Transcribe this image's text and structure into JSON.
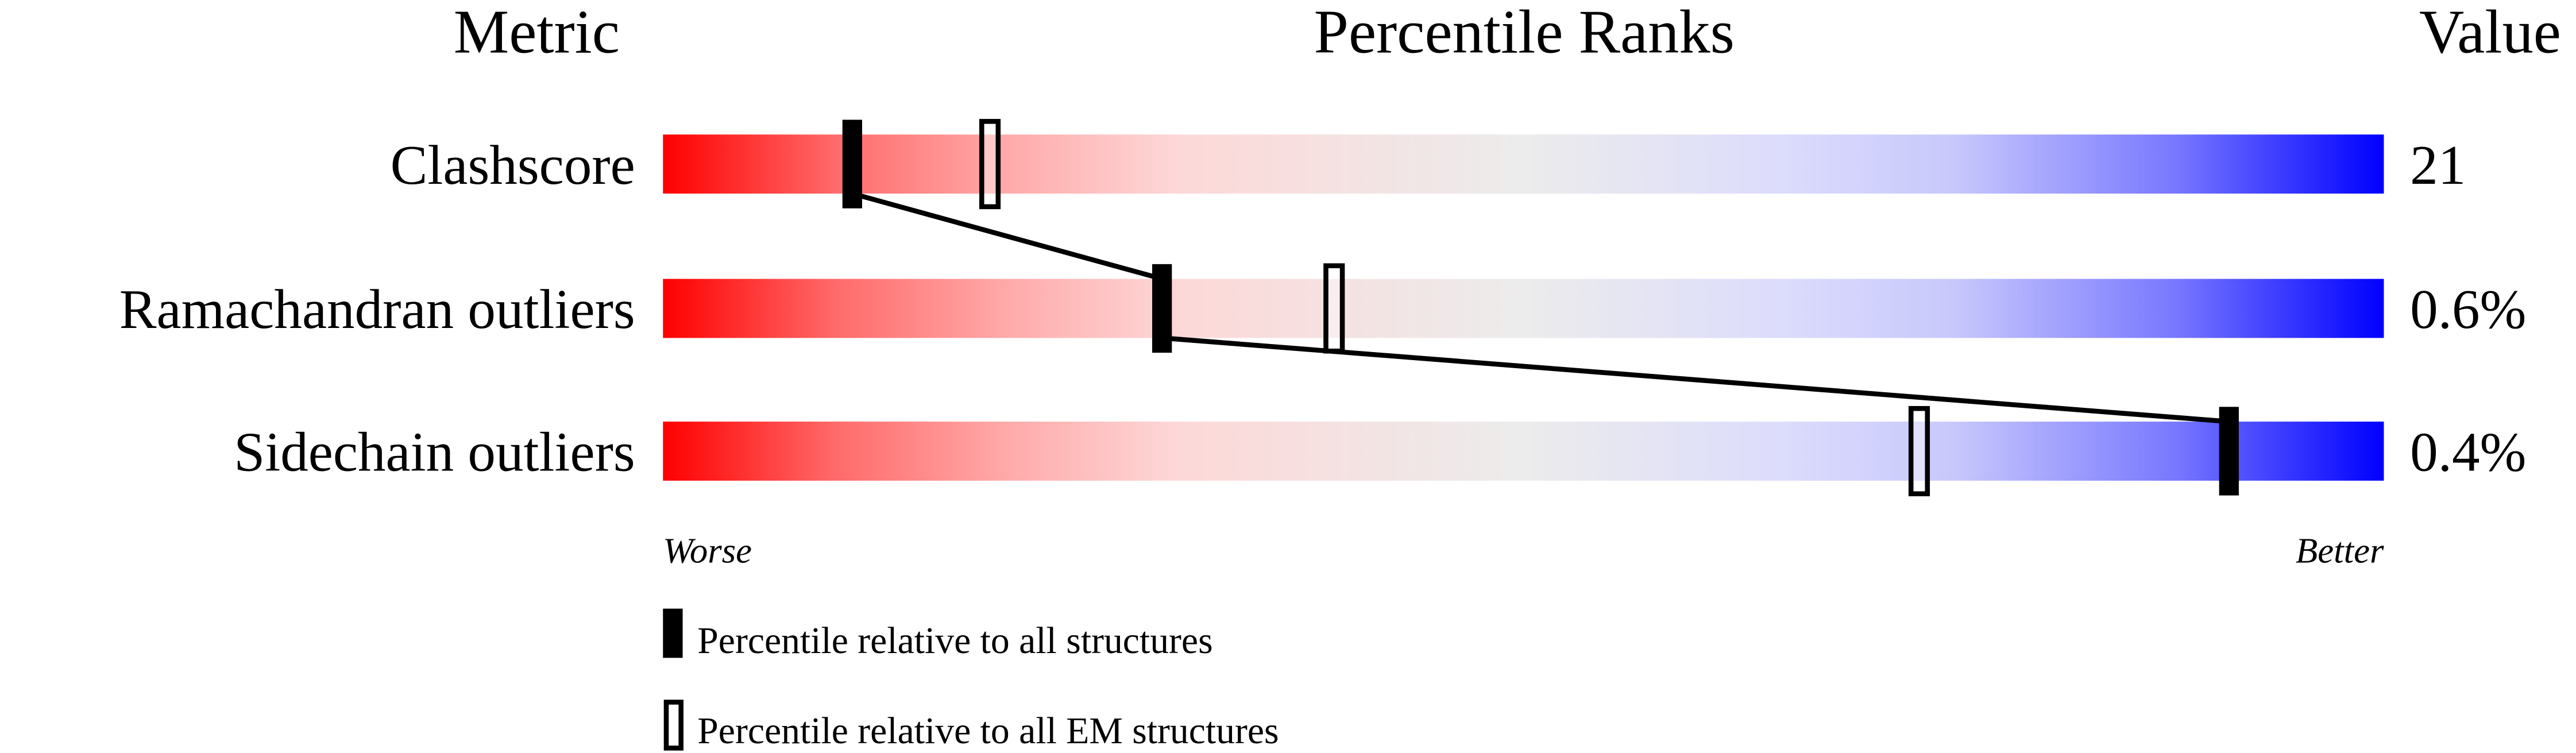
{
  "chart_data": {
    "type": "percentile-slider",
    "headers": {
      "metric": "Metric",
      "ranks": "Percentile Ranks",
      "value": "Value"
    },
    "rows": [
      {
        "metric": "Clashscore",
        "value": "21",
        "percentile_all": 11,
        "percentile_em": 19
      },
      {
        "metric": "Ramachandran outliers",
        "value": "0.6%",
        "percentile_all": 29,
        "percentile_em": 39
      },
      {
        "metric": "Sidechain outliers",
        "value": "0.4%",
        "percentile_all": 91,
        "percentile_em": 73
      }
    ],
    "xrange": [
      0,
      100
    ],
    "axis": {
      "left": "Worse",
      "right": "Better"
    },
    "legend": {
      "all": "Percentile relative to all structures",
      "em": "Percentile relative to all EM structures"
    },
    "colors": {
      "worse": "#ff0000",
      "middle": "#eeeeee",
      "better": "#0000ff",
      "marker": "#000000"
    }
  }
}
